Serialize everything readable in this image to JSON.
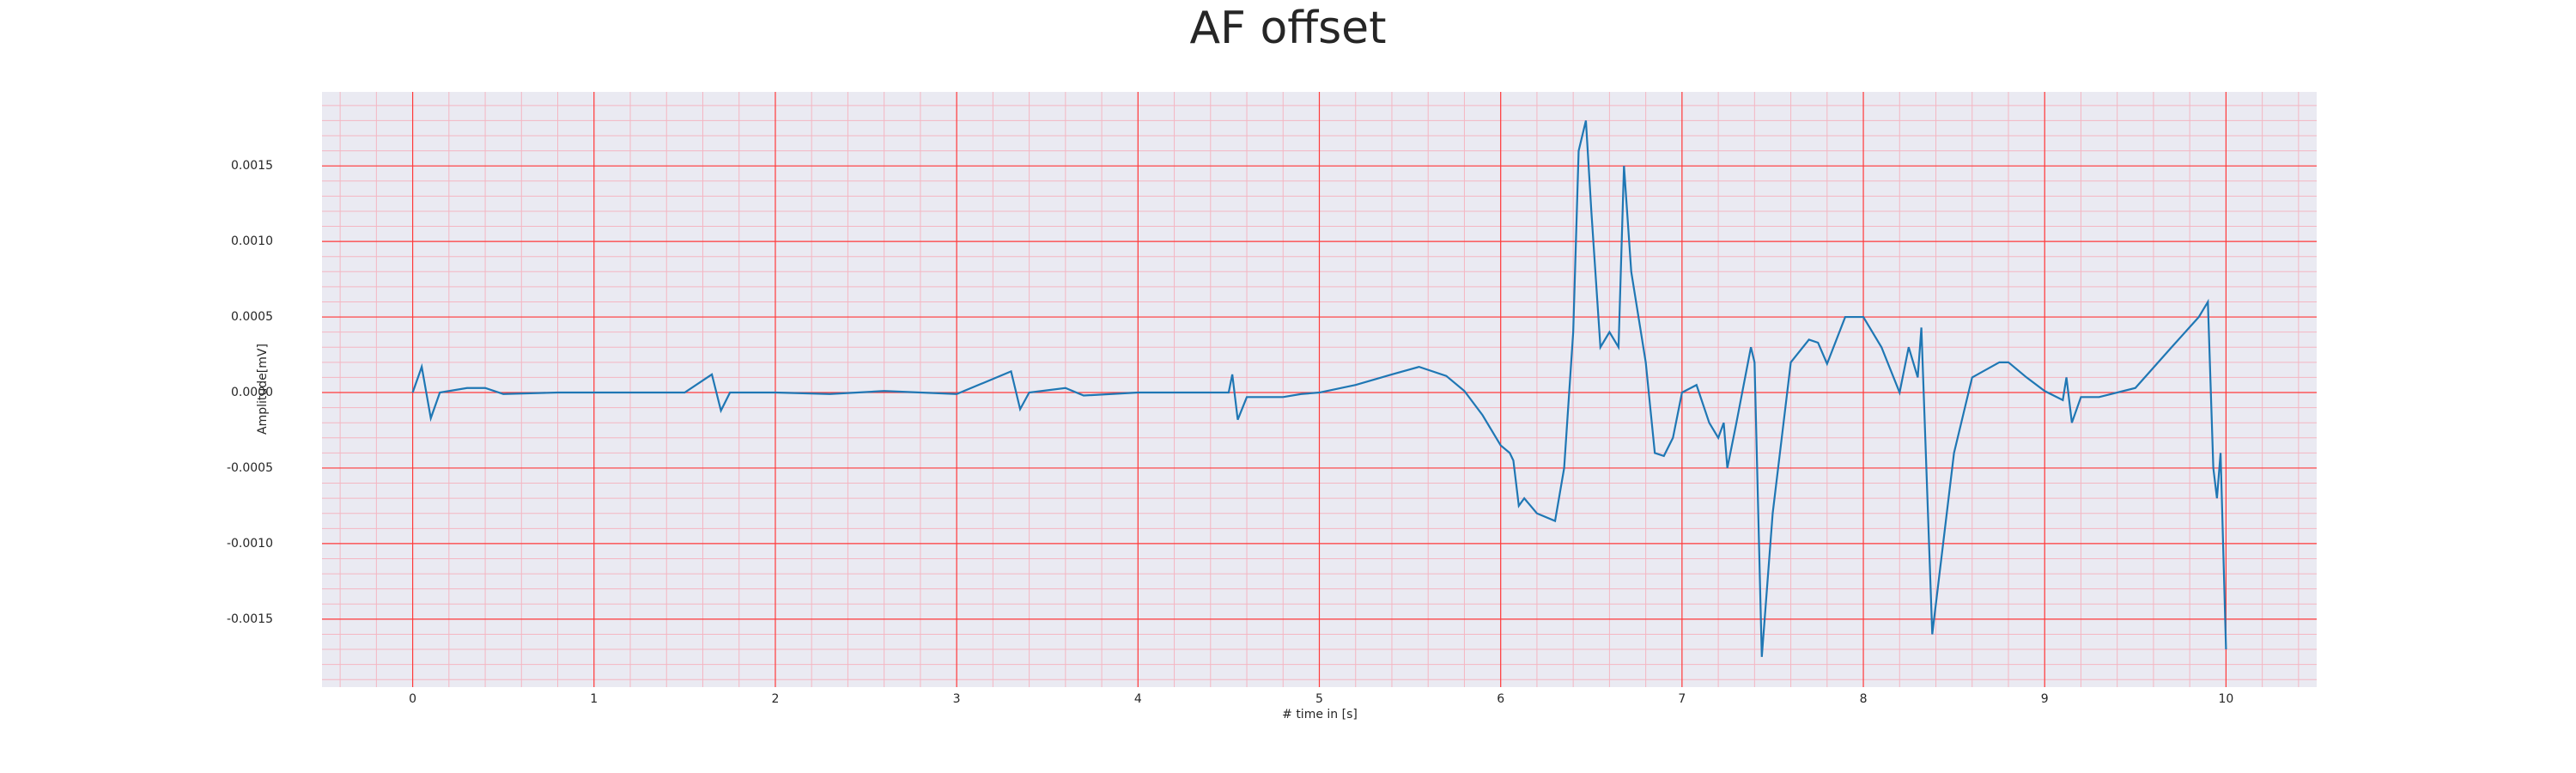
{
  "chart_data": {
    "type": "line",
    "title": "AF offset",
    "x_label": "# time in [s]",
    "y_label": "Amplitude[mV]",
    "xlim": [
      -0.5,
      10.5
    ],
    "ylim": [
      -0.00195,
      0.00199
    ],
    "xticks": [
      0,
      1,
      2,
      3,
      4,
      5,
      6,
      7,
      8,
      9,
      10
    ],
    "yticks": [
      {
        "value": -0.0015,
        "label": "-0.0015"
      },
      {
        "value": -0.001,
        "label": "-0.0010"
      },
      {
        "value": -0.0005,
        "label": "-0.0005"
      },
      {
        "value": 0,
        "label": "0.0000"
      },
      {
        "value": 0.0005,
        "label": "0.0005"
      },
      {
        "value": 0.001,
        "label": "0.0010"
      },
      {
        "value": 0.0015,
        "label": "0.0015"
      }
    ],
    "grid": true,
    "series": [
      {
        "color": "#1f77b4",
        "x": [
          0,
          0.05,
          0.1,
          0.15,
          0.3,
          0.4,
          0.5,
          0.8,
          1.0,
          1.5,
          1.65,
          1.7,
          1.75,
          2.0,
          2.3,
          2.6,
          3.0,
          3.3,
          3.35,
          3.4,
          3.6,
          3.7,
          4.0,
          4.5,
          4.52,
          4.55,
          4.6,
          4.8,
          4.9,
          5.0,
          5.2,
          5.4,
          5.55,
          5.7,
          5.8,
          5.9,
          6.0,
          6.05,
          6.07,
          6.1,
          6.13,
          6.2,
          6.3,
          6.35,
          6.4,
          6.43,
          6.47,
          6.5,
          6.55,
          6.6,
          6.65,
          6.68,
          6.72,
          6.8,
          6.85,
          6.9,
          6.95,
          7.0,
          7.08,
          7.15,
          7.2,
          7.23,
          7.25,
          7.3,
          7.38,
          7.4,
          7.44,
          7.5,
          7.6,
          7.7,
          7.75,
          7.8,
          7.9,
          8.0,
          8.1,
          8.2,
          8.25,
          8.3,
          8.32,
          8.38,
          8.45,
          8.5,
          8.6,
          8.75,
          8.8,
          8.9,
          9.0,
          9.1,
          9.12,
          9.15,
          9.2,
          9.3,
          9.5,
          9.7,
          9.85,
          9.9,
          9.93,
          9.95,
          9.97,
          10.0
        ],
        "values": [
          0,
          0.00017,
          -0.00017,
          0,
          3e-05,
          3e-05,
          -1e-05,
          0,
          0,
          0,
          0.00012,
          -0.00012,
          0,
          0,
          -1e-05,
          1e-05,
          -1e-05,
          0.00014,
          -0.00011,
          0,
          3e-05,
          -2e-05,
          0,
          0,
          0.00012,
          -0.00018,
          -3e-05,
          -3e-05,
          -1e-05,
          0,
          5e-05,
          0.00012,
          0.00017,
          0.00011,
          1e-05,
          -0.00015,
          -0.00035,
          -0.0004,
          -0.00045,
          -0.00075,
          -0.0007,
          -0.0008,
          -0.00085,
          -0.0005,
          0.0004,
          0.0016,
          0.0018,
          0.0012,
          0.0003,
          0.0004,
          0.0003,
          0.0015,
          0.0008,
          0.0002,
          -0.0004,
          -0.00042,
          -0.0003,
          0,
          5e-05,
          -0.0002,
          -0.0003,
          -0.0002,
          -0.0005,
          -0.0002,
          0.0003,
          0.0002,
          -0.00175,
          -0.0008,
          0.0002,
          0.00035,
          0.00033,
          0.00019,
          0.0005,
          0.0005,
          0.0003,
          0,
          0.0003,
          0.0001,
          0.00043,
          -0.0016,
          -0.0009,
          -0.0004,
          0.0001,
          0.0002,
          0.0002,
          0.0001,
          1e-05,
          -5e-05,
          0.0001,
          -0.0002,
          -3e-05,
          -3e-05,
          3e-05,
          0.0003,
          0.0005,
          0.0006,
          -0.0005,
          -0.0007,
          -0.0004,
          -0.0017
        ]
      }
    ]
  }
}
